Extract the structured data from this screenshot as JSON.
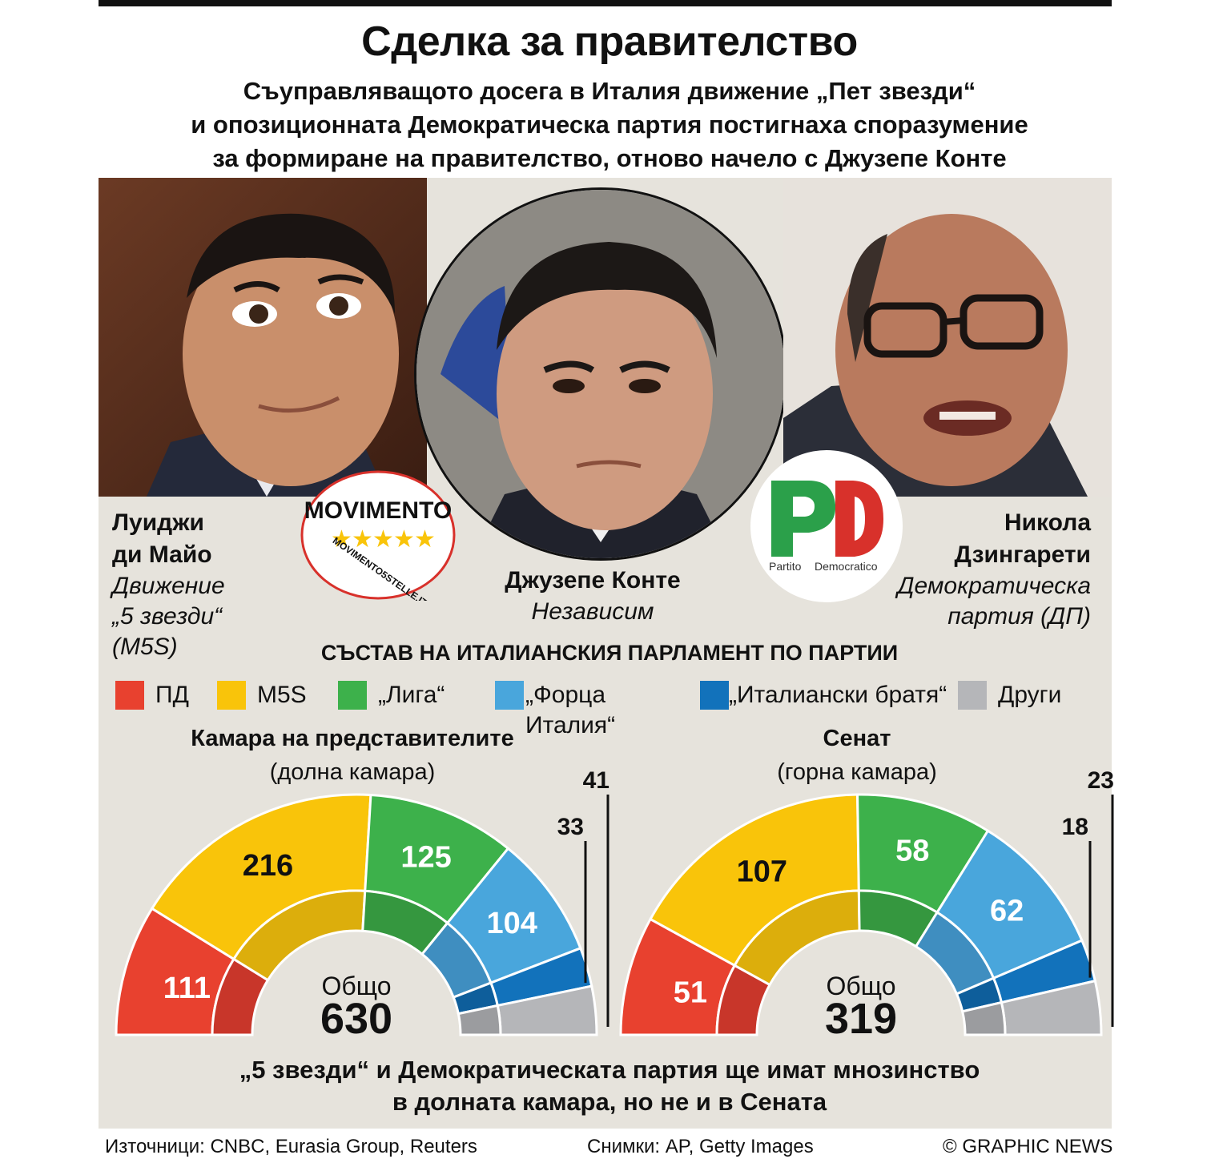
{
  "title": "Сделка за правителство",
  "subtitle_lines": [
    "Съуправляващото досега в Италия движение „Пет звезди“",
    "и опозиционната Демократическа партия постигнаха споразумение",
    "за формиране на правителство, отново начело с Джузепе Конте"
  ],
  "people": {
    "left": {
      "name1": "Луиджи",
      "name2": "ди Майо",
      "party1": "Движение",
      "party2": "„5 звезди“",
      "party3": "(M5S)"
    },
    "center": {
      "name": "Джузепе Конте",
      "party": "Независим"
    },
    "right": {
      "name1": "Никола",
      "name2": "Дзингарети",
      "party1": "Демократическа",
      "party2": "партия (ДП)"
    }
  },
  "logos": {
    "m5s_text": "MOVIMENTO",
    "m5s_url": "MOVIMENTO5STELLE.IT",
    "pd_text1": "Partito",
    "pd_text2": "Democratico"
  },
  "chart_heading": "СЪСТАВ НА ИТАЛИАНСКИЯ ПАРЛАМЕНТ ПО ПАРТИИ",
  "legend": [
    {
      "label": "ПД",
      "color": "#e8412f"
    },
    {
      "label": "M5S",
      "color": "#f9c40a"
    },
    {
      "label": "„Лига“",
      "color": "#3db14b"
    },
    {
      "label": "„Форца",
      "label2": "Италия“",
      "color": "#49a6dc"
    },
    {
      "label": "„Италиански братя“",
      "color": "#1272bb"
    },
    {
      "label": "Други",
      "color": "#b5b6b9"
    }
  ],
  "chart_data": [
    {
      "type": "semicircle",
      "title": "Камара на представителите",
      "subtitle": "(долна камара)",
      "total_label": "Общо",
      "total": 630,
      "categories": [
        "ПД",
        "M5S",
        "„Лига“",
        "„Форца Италия“",
        "„Италиански братя“",
        "Други"
      ],
      "values": [
        111,
        216,
        125,
        104,
        33,
        41
      ]
    },
    {
      "type": "semicircle",
      "title": "Сенат",
      "subtitle": "(горна камара)",
      "total_label": "Общо",
      "total": 319,
      "categories": [
        "ПД",
        "M5S",
        "„Лига“",
        "„Форца Италия“",
        "„Италиански братя“",
        "Други"
      ],
      "values": [
        51,
        107,
        58,
        62,
        18,
        23
      ]
    }
  ],
  "conclusion_lines": [
    "„5 звезди“ и Демократическата партия ще имат мнозинство",
    "в долната камара, но не и в Сената"
  ],
  "footer": {
    "sources": "Източници: CNBC, Eurasia Group, Reuters",
    "photos": "Снимки: AP, Getty Images",
    "credit": "© GRAPHIC NEWS"
  }
}
